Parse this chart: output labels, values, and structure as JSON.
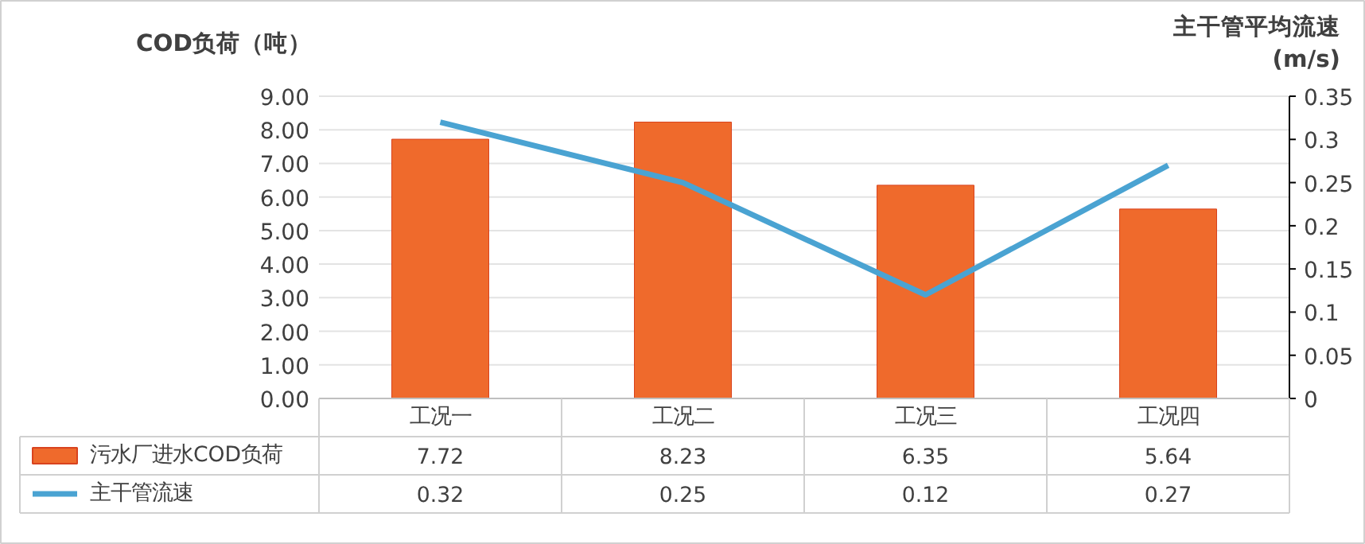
{
  "chart_data": {
    "type": "bar",
    "ylabel": "COD负荷（吨）",
    "y2label": "主干管平均流速\n(m/s)",
    "categories": [
      "工况一",
      "工况二",
      "工况三",
      "工况四"
    ],
    "series": [
      {
        "name": "污水厂进水COD负荷",
        "color": "#ef6a2c",
        "values": [
          7.72,
          8.23,
          6.35,
          5.64
        ]
      },
      {
        "name": "主干管流速",
        "type": "line",
        "axis": "y2",
        "color": "#4aa3d2",
        "values": [
          0.32,
          0.25,
          0.12,
          0.27
        ]
      }
    ],
    "ylim": [
      0,
      9
    ],
    "yticks": [
      {
        "value": 0,
        "label": "0.00"
      },
      {
        "value": 1,
        "label": "1.00"
      },
      {
        "value": 2,
        "label": "2.00"
      },
      {
        "value": 3,
        "label": "3.00"
      },
      {
        "value": 4,
        "label": "4.00"
      },
      {
        "value": 5,
        "label": "5.00"
      },
      {
        "value": 6,
        "label": "6.00"
      },
      {
        "value": 7,
        "label": "7.00"
      },
      {
        "value": 8,
        "label": "8.00"
      },
      {
        "value": 9,
        "label": "9.00"
      }
    ],
    "y2lim": [
      0,
      0.35
    ],
    "y2ticks": [
      0,
      0.05,
      0.1,
      0.15,
      0.2,
      0.25,
      0.3,
      0.35
    ],
    "grid": "y",
    "legend": "bottom",
    "data_labels": true,
    "marker": "none",
    "line_style": "solid"
  }
}
